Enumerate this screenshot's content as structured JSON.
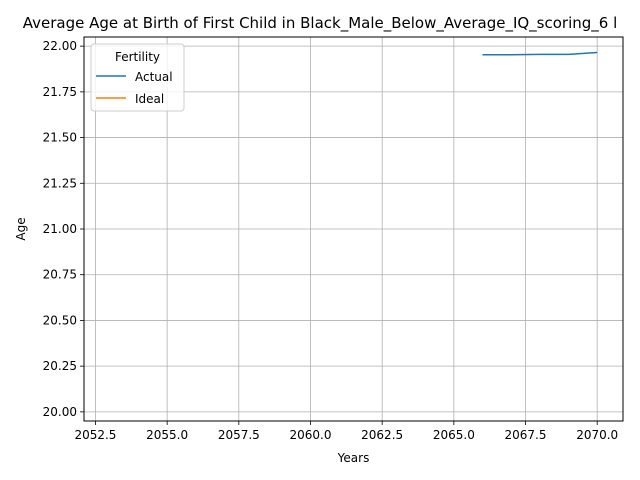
{
  "chart_data": {
    "type": "line",
    "title": "Average Age at Birth of First Child in Black_Male_Below_Average_IQ_scoring_6 l",
    "xlabel": "Years",
    "ylabel": "Age",
    "xlim": [
      2052.1,
      2070.9
    ],
    "ylim": [
      19.95,
      22.05
    ],
    "x_ticks": [
      2052.5,
      2055.0,
      2057.5,
      2060.0,
      2062.5,
      2065.0,
      2067.5,
      2070.0
    ],
    "x_tick_labels": [
      "2052.5",
      "2055.0",
      "2057.5",
      "2060.0",
      "2062.5",
      "2065.0",
      "2067.5",
      "2070.0"
    ],
    "y_ticks": [
      20.0,
      20.25,
      20.5,
      20.75,
      21.0,
      21.25,
      21.5,
      21.75,
      22.0
    ],
    "y_tick_labels": [
      "20.00",
      "20.25",
      "20.50",
      "20.75",
      "21.00",
      "21.25",
      "21.50",
      "21.75",
      "22.00"
    ],
    "grid": true,
    "legend": {
      "title": "Fertility",
      "position": "top-left"
    },
    "series": [
      {
        "name": "Actual",
        "color": "#1f77b4",
        "x": [
          2066,
          2067,
          2068,
          2069,
          2070
        ],
        "values": [
          21.953,
          21.953,
          21.955,
          21.955,
          21.965
        ]
      },
      {
        "name": "Ideal",
        "color": "#ff7f0e",
        "x": [],
        "values": []
      }
    ]
  }
}
